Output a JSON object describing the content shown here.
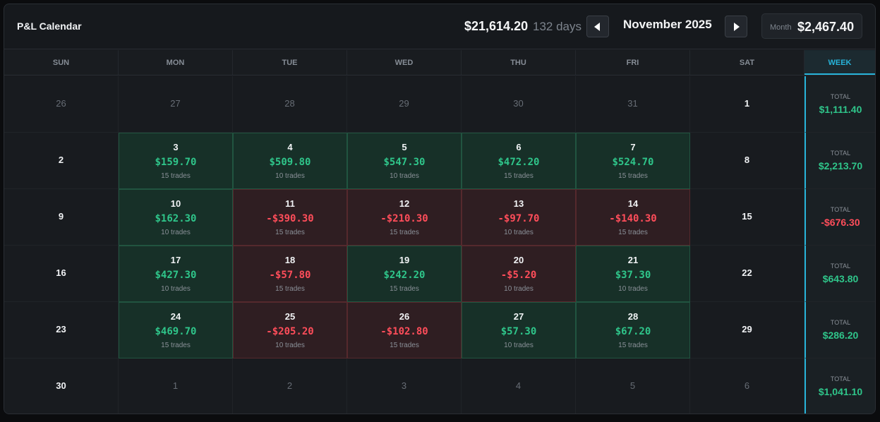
{
  "header": {
    "title": "P&L Calendar",
    "total_pnl": "$21,614.20",
    "days": "132 days",
    "month": "November 2025",
    "month_label": "Month",
    "month_pnl": "$2,467.40"
  },
  "weekdays": [
    "SUN",
    "MON",
    "TUE",
    "WED",
    "THU",
    "FRI",
    "SAT"
  ],
  "week_label": "WEEK",
  "total_label": "TOTAL",
  "weeks": [
    {
      "total": "$1,111.40",
      "total_sign": "pos",
      "days": [
        {
          "d": "26",
          "other": true
        },
        {
          "d": "27",
          "other": true
        },
        {
          "d": "28",
          "other": true
        },
        {
          "d": "29",
          "other": true
        },
        {
          "d": "30",
          "other": true
        },
        {
          "d": "31",
          "other": true
        },
        {
          "d": "1"
        }
      ]
    },
    {
      "total": "$2,213.70",
      "total_sign": "pos",
      "days": [
        {
          "d": "2"
        },
        {
          "d": "3",
          "pnl": "$159.70",
          "trades": "15 trades",
          "sign": "pos"
        },
        {
          "d": "4",
          "pnl": "$509.80",
          "trades": "10 trades",
          "sign": "pos"
        },
        {
          "d": "5",
          "pnl": "$547.30",
          "trades": "10 trades",
          "sign": "pos"
        },
        {
          "d": "6",
          "pnl": "$472.20",
          "trades": "15 trades",
          "sign": "pos"
        },
        {
          "d": "7",
          "pnl": "$524.70",
          "trades": "15 trades",
          "sign": "pos"
        },
        {
          "d": "8"
        }
      ]
    },
    {
      "total": "-$676.30",
      "total_sign": "neg",
      "days": [
        {
          "d": "9"
        },
        {
          "d": "10",
          "pnl": "$162.30",
          "trades": "10 trades",
          "sign": "pos"
        },
        {
          "d": "11",
          "pnl": "-$390.30",
          "trades": "15 trades",
          "sign": "neg"
        },
        {
          "d": "12",
          "pnl": "-$210.30",
          "trades": "15 trades",
          "sign": "neg"
        },
        {
          "d": "13",
          "pnl": "-$97.70",
          "trades": "10 trades",
          "sign": "neg"
        },
        {
          "d": "14",
          "pnl": "-$140.30",
          "trades": "15 trades",
          "sign": "neg"
        },
        {
          "d": "15"
        }
      ]
    },
    {
      "total": "$643.80",
      "total_sign": "pos",
      "days": [
        {
          "d": "16"
        },
        {
          "d": "17",
          "pnl": "$427.30",
          "trades": "10 trades",
          "sign": "pos"
        },
        {
          "d": "18",
          "pnl": "-$57.80",
          "trades": "15 trades",
          "sign": "neg"
        },
        {
          "d": "19",
          "pnl": "$242.20",
          "trades": "15 trades",
          "sign": "pos"
        },
        {
          "d": "20",
          "pnl": "-$5.20",
          "trades": "10 trades",
          "sign": "neg"
        },
        {
          "d": "21",
          "pnl": "$37.30",
          "trades": "10 trades",
          "sign": "pos"
        },
        {
          "d": "22"
        }
      ]
    },
    {
      "total": "$286.20",
      "total_sign": "pos",
      "days": [
        {
          "d": "23"
        },
        {
          "d": "24",
          "pnl": "$469.70",
          "trades": "15 trades",
          "sign": "pos"
        },
        {
          "d": "25",
          "pnl": "-$205.20",
          "trades": "10 trades",
          "sign": "neg"
        },
        {
          "d": "26",
          "pnl": "-$102.80",
          "trades": "15 trades",
          "sign": "neg"
        },
        {
          "d": "27",
          "pnl": "$57.30",
          "trades": "10 trades",
          "sign": "pos"
        },
        {
          "d": "28",
          "pnl": "$67.20",
          "trades": "15 trades",
          "sign": "pos"
        },
        {
          "d": "29"
        }
      ]
    },
    {
      "total": "$1,041.10",
      "total_sign": "pos",
      "days": [
        {
          "d": "30"
        },
        {
          "d": "1",
          "other": true
        },
        {
          "d": "2",
          "other": true
        },
        {
          "d": "3",
          "other": true
        },
        {
          "d": "4",
          "other": true
        },
        {
          "d": "5",
          "other": true
        },
        {
          "d": "6",
          "other": true
        }
      ]
    }
  ]
}
